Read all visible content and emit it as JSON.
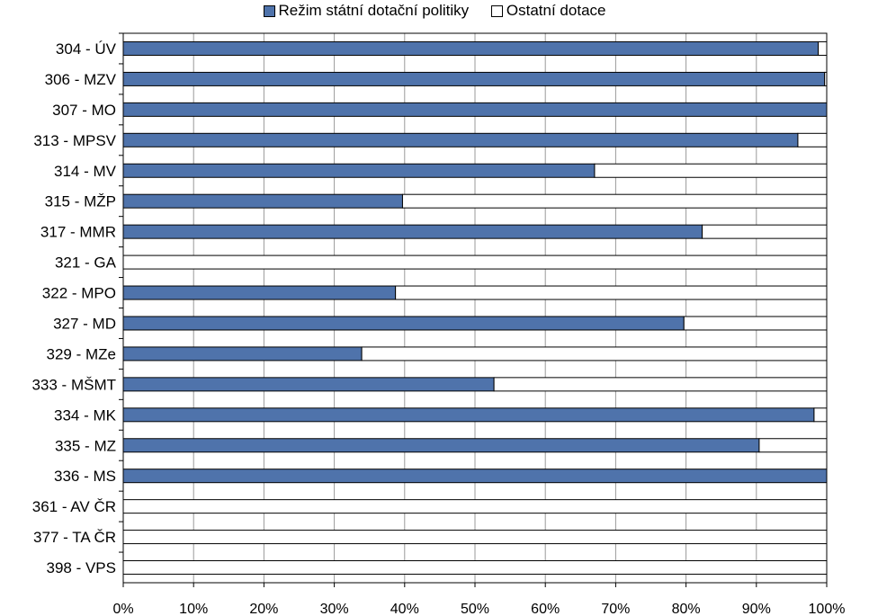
{
  "chart_data": {
    "type": "bar",
    "orientation": "horizontal",
    "stacked": "percent",
    "categories": [
      "304 - ÚV",
      "306 - MZV",
      "307 - MO",
      "313 - MPSV",
      "314 - MV",
      "315 - MŽP",
      "317 - MMR",
      "321 - GA",
      "322 - MPO",
      "327 - MD",
      "329 - MZe",
      "333 - MŠMT",
      "334 - MK",
      "335 - MZ",
      "336 - MS",
      "361 - AV ČR",
      "377 - TA ČR",
      "398 - VPS"
    ],
    "series": [
      {
        "name": "Režim státní dotační politiky",
        "color": "#4F73AB",
        "values": [
          98.8,
          99.7,
          100,
          95.9,
          67.0,
          39.7,
          82.3,
          0,
          38.7,
          79.7,
          33.9,
          52.7,
          98.2,
          90.4,
          100,
          0,
          0,
          0
        ]
      },
      {
        "name": "Ostatní dotace",
        "color": "#FFFFFF",
        "values": [
          1.2,
          0.3,
          0,
          4.1,
          33.0,
          60.3,
          17.7,
          100,
          61.3,
          20.3,
          66.1,
          47.3,
          1.8,
          9.6,
          0,
          100,
          100,
          100
        ]
      }
    ],
    "x_ticks": [
      "0%",
      "10%",
      "20%",
      "30%",
      "40%",
      "50%",
      "60%",
      "70%",
      "80%",
      "90%",
      "100%"
    ],
    "xlim": [
      0,
      100
    ],
    "grid": "vertical",
    "legend": "top"
  }
}
